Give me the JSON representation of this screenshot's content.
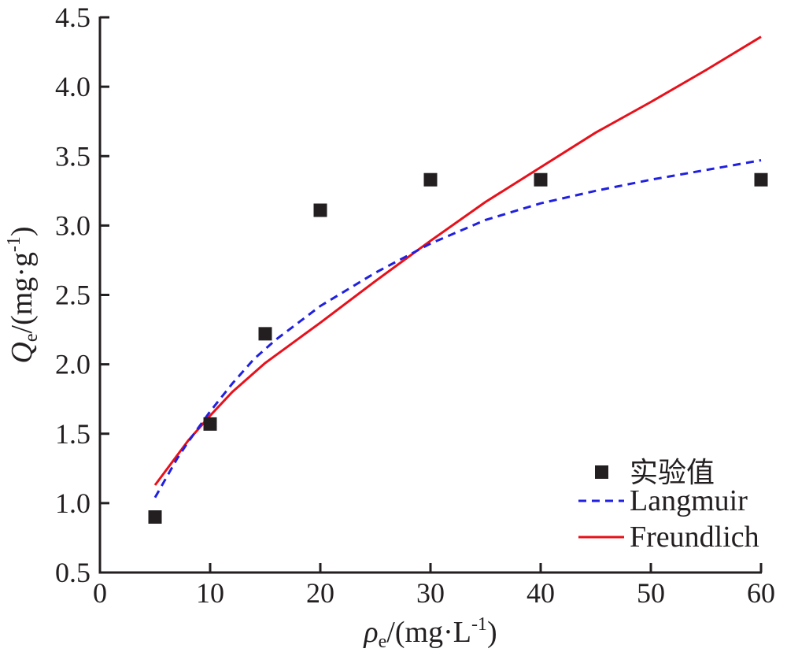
{
  "chart_data": {
    "type": "scatter",
    "title": "",
    "xlabel": {
      "symbol": "ρ",
      "subscript": "e",
      "unit_prefix": "/(mg·L",
      "unit_sup": "-1",
      "unit_suffix": ")"
    },
    "ylabel": {
      "symbol": "Q",
      "subscript": "e",
      "unit_prefix": "/(mg·g",
      "unit_sup": "-1",
      "unit_suffix": ")"
    },
    "xlim": [
      0,
      60
    ],
    "ylim": [
      0.5,
      4.5
    ],
    "xticks": [
      0,
      10,
      20,
      30,
      40,
      50,
      60
    ],
    "xtick_labels": [
      "0",
      "10",
      "20",
      "30",
      "40",
      "50",
      "60"
    ],
    "yticks": [
      0.5,
      1.0,
      1.5,
      2.0,
      2.5,
      3.0,
      3.5,
      4.0,
      4.5
    ],
    "ytick_labels": [
      "0.5",
      "1.0",
      "1.5",
      "2.0",
      "2.5",
      "3.0",
      "3.5",
      "4.0",
      "4.5"
    ],
    "grid": false,
    "legend_position": "bottom-right",
    "series": [
      {
        "name": "实验值",
        "kind": "scatter",
        "marker": "square",
        "color": "#231f20",
        "x": [
          5,
          10,
          15,
          20,
          30,
          40,
          60
        ],
        "y": [
          0.9,
          1.57,
          2.22,
          3.11,
          3.33,
          3.33,
          3.33
        ]
      },
      {
        "name": "Langmuir",
        "kind": "line",
        "style": "dashed",
        "color": "#2020e0",
        "x": [
          5,
          6,
          7,
          8,
          10,
          12,
          14,
          16,
          18,
          20,
          25,
          30,
          35,
          40,
          45,
          50,
          55,
          60
        ],
        "y": [
          1.04,
          1.18,
          1.32,
          1.44,
          1.66,
          1.86,
          2.04,
          2.18,
          2.3,
          2.42,
          2.66,
          2.87,
          3.04,
          3.16,
          3.25,
          3.33,
          3.4,
          3.47
        ]
      },
      {
        "name": "Freundlich",
        "kind": "line",
        "style": "solid",
        "color": "#e8101a",
        "x": [
          5,
          8,
          10,
          12,
          15,
          20,
          25,
          30,
          35,
          40,
          45,
          50,
          55,
          60
        ],
        "y": [
          1.13,
          1.45,
          1.63,
          1.8,
          2.01,
          2.3,
          2.6,
          2.89,
          3.17,
          3.42,
          3.67,
          3.89,
          4.12,
          4.36
        ]
      }
    ]
  }
}
